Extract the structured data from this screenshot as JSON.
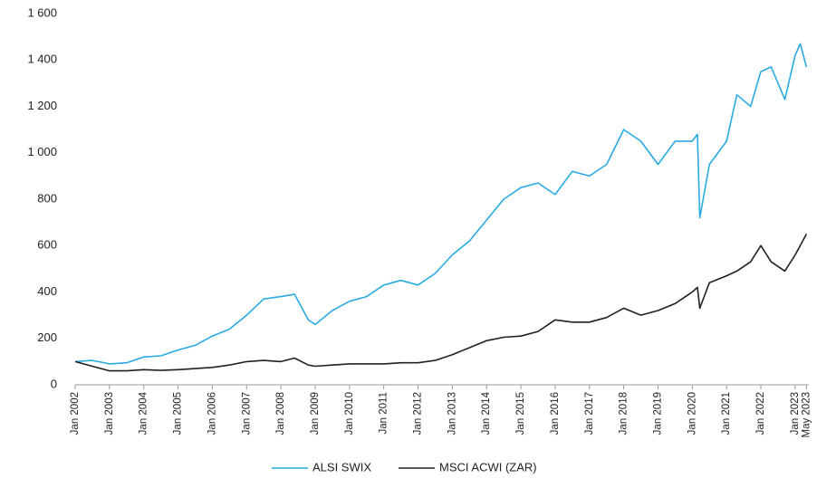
{
  "chart_data": {
    "type": "line",
    "x": [
      2002.0,
      2002.5,
      2003.0,
      2003.5,
      2004.0,
      2004.5,
      2005.0,
      2005.5,
      2006.0,
      2006.5,
      2007.0,
      2007.5,
      2008.0,
      2008.4,
      2008.8,
      2009.0,
      2009.5,
      2010.0,
      2010.5,
      2011.0,
      2011.5,
      2012.0,
      2012.5,
      2013.0,
      2013.5,
      2014.0,
      2014.5,
      2015.0,
      2015.5,
      2016.0,
      2016.5,
      2017.0,
      2017.5,
      2018.0,
      2018.5,
      2019.0,
      2019.5,
      2020.0,
      2020.15,
      2020.22,
      2020.5,
      2021.0,
      2021.3,
      2021.7,
      2022.0,
      2022.3,
      2022.7,
      2023.0,
      2023.15,
      2023.33
    ],
    "series": [
      {
        "name": "ALSI SWIX",
        "color": "#29abe2",
        "values": [
          100,
          105,
          90,
          95,
          120,
          125,
          150,
          170,
          210,
          240,
          300,
          370,
          380,
          390,
          280,
          260,
          320,
          360,
          380,
          430,
          450,
          430,
          480,
          560,
          620,
          710,
          800,
          850,
          870,
          820,
          920,
          900,
          950,
          1100,
          1050,
          950,
          1050,
          1050,
          1080,
          720,
          950,
          1050,
          1250,
          1200,
          1350,
          1370,
          1230,
          1420,
          1470,
          1370
        ]
      },
      {
        "name": "MSCI ACWI (ZAR)",
        "color": "#231f20",
        "values": [
          100,
          80,
          60,
          60,
          65,
          62,
          65,
          70,
          75,
          85,
          100,
          105,
          100,
          115,
          85,
          80,
          85,
          90,
          90,
          90,
          95,
          95,
          105,
          130,
          160,
          190,
          205,
          210,
          230,
          280,
          270,
          270,
          290,
          330,
          300,
          320,
          350,
          400,
          420,
          330,
          440,
          470,
          490,
          530,
          600,
          530,
          490,
          560,
          600,
          650
        ]
      }
    ],
    "xlim": [
      2002,
      2023.4
    ],
    "xticks": [
      {
        "value": 2002,
        "label": "Jan 2002"
      },
      {
        "value": 2003,
        "label": "Jan 2003"
      },
      {
        "value": 2004,
        "label": "Jan 2004"
      },
      {
        "value": 2005,
        "label": "Jan 2005"
      },
      {
        "value": 2006,
        "label": "Jan 2006"
      },
      {
        "value": 2007,
        "label": "Jan 2007"
      },
      {
        "value": 2008,
        "label": "Jan 2008"
      },
      {
        "value": 2009,
        "label": "Jan 2009"
      },
      {
        "value": 2010,
        "label": "Jan 2010"
      },
      {
        "value": 2011,
        "label": "Jan 2011"
      },
      {
        "value": 2012,
        "label": "Jan 2012"
      },
      {
        "value": 2013,
        "label": "Jan 2013"
      },
      {
        "value": 2014,
        "label": "Jan 2014"
      },
      {
        "value": 2015,
        "label": "Jan 2015"
      },
      {
        "value": 2016,
        "label": "Jan 2016"
      },
      {
        "value": 2017,
        "label": "Jan 2017"
      },
      {
        "value": 2018,
        "label": "Jan 2018"
      },
      {
        "value": 2019,
        "label": "Jan 2019"
      },
      {
        "value": 2020,
        "label": "Jan 2020"
      },
      {
        "value": 2021,
        "label": "Jan 2021"
      },
      {
        "value": 2022,
        "label": "Jan 2022"
      },
      {
        "value": 2023,
        "label": "Jan 2023"
      },
      {
        "value": 2023.33,
        "label": "May 2023"
      }
    ],
    "ylim": [
      0,
      1600
    ],
    "yticks": [
      0,
      200,
      400,
      600,
      800,
      {
        "value": 1000,
        "label": "1 000"
      },
      {
        "value": 1200,
        "label": "1 200"
      },
      {
        "value": 1400,
        "label": "1 400"
      },
      {
        "value": 1600,
        "label": "1 600"
      }
    ],
    "grid": false,
    "legend": "bottom"
  }
}
